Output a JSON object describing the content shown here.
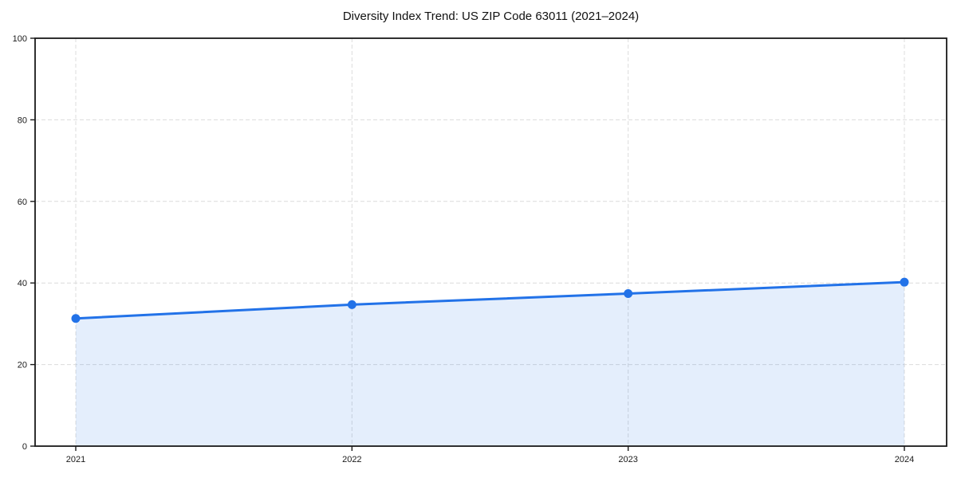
{
  "chart_data": {
    "type": "line",
    "title": "Diversity Index Trend: US ZIP Code 63011 (2021–2024)",
    "categories": [
      "2021",
      "2022",
      "2023",
      "2024"
    ],
    "series": [
      {
        "name": "Diversity Index",
        "values": [
          31.3,
          34.7,
          37.4,
          40.2
        ]
      }
    ],
    "xlabel": "",
    "ylabel": "",
    "ylim": [
      0,
      100
    ],
    "yticks": [
      0,
      20,
      40,
      60,
      80,
      100
    ],
    "grid": "dashed, both axes",
    "legend_position": "none",
    "area_fill": true,
    "markers": true
  },
  "colors": {
    "line": "#2272e8",
    "area": "rgba(34, 114, 232, 0.12)",
    "grid": "#dcdcdc",
    "axis": "#1a1a1a",
    "text": "#1a1a1a",
    "background": "#ffffff"
  }
}
